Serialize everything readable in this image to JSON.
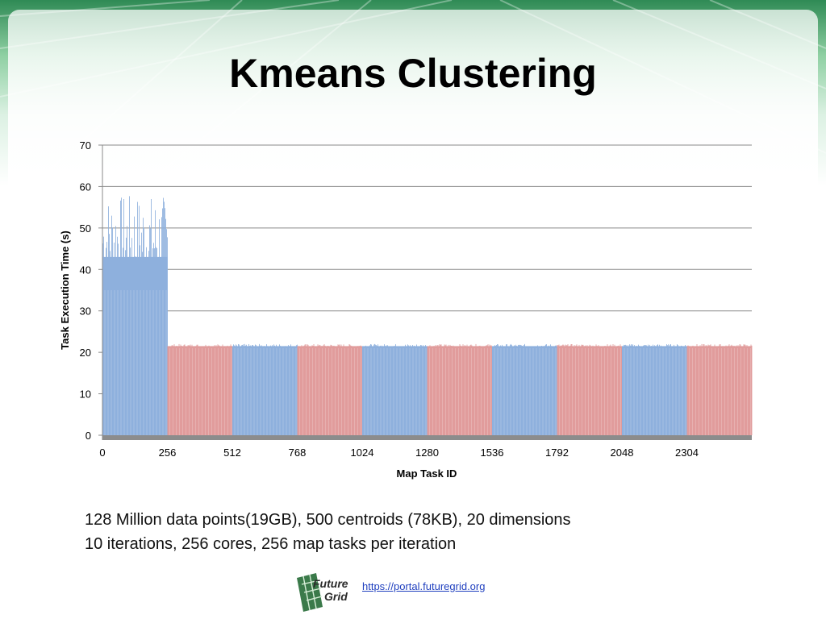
{
  "slide": {
    "title": "Kmeans Clustering",
    "caption_lines": [
      "128 Million data points(19GB), 500 centroids (78KB), 20 dimensions",
      "10 iterations, 256 cores, 256 map tasks per iteration"
    ],
    "logo_text": [
      "Future",
      "Grid"
    ],
    "link": "https://portal.futuregrid.org",
    "colors": {
      "background_top": "#2f8a55",
      "link": "#1f3fbf"
    }
  },
  "chart_data": {
    "type": "bar",
    "title": "",
    "xlabel": "Map Task ID",
    "ylabel": "Task Execution Time (s)",
    "xlim": [
      0,
      2560
    ],
    "ylim": [
      0,
      70
    ],
    "yticks": [
      0,
      10,
      20,
      30,
      40,
      50,
      60,
      70
    ],
    "xticks": [
      0,
      256,
      512,
      768,
      1024,
      1280,
      1536,
      1792,
      2048,
      2304
    ],
    "grid": true,
    "legend": "none",
    "colors": {
      "iteration_a": "#8eb0dd",
      "iteration_b": "#e09c9c"
    },
    "series": [
      {
        "iteration": 1,
        "task_range": [
          0,
          255
        ],
        "typical_time": 43,
        "min_time": 35,
        "max_time": 58,
        "color": "#8eb0dd"
      },
      {
        "iteration": 2,
        "task_range": [
          256,
          511
        ],
        "typical_time": 21.5,
        "min_time": 21,
        "max_time": 22,
        "color": "#e09c9c"
      },
      {
        "iteration": 3,
        "task_range": [
          512,
          767
        ],
        "typical_time": 21.5,
        "min_time": 21,
        "max_time": 22,
        "color": "#8eb0dd"
      },
      {
        "iteration": 4,
        "task_range": [
          768,
          1023
        ],
        "typical_time": 21.5,
        "min_time": 21,
        "max_time": 22,
        "color": "#e09c9c"
      },
      {
        "iteration": 5,
        "task_range": [
          1024,
          1279
        ],
        "typical_time": 21.5,
        "min_time": 21,
        "max_time": 22,
        "color": "#8eb0dd"
      },
      {
        "iteration": 6,
        "task_range": [
          1280,
          1535
        ],
        "typical_time": 21.5,
        "min_time": 21,
        "max_time": 22,
        "color": "#e09c9c"
      },
      {
        "iteration": 7,
        "task_range": [
          1536,
          1791
        ],
        "typical_time": 21.5,
        "min_time": 21,
        "max_time": 22,
        "color": "#8eb0dd"
      },
      {
        "iteration": 8,
        "task_range": [
          1792,
          2047
        ],
        "typical_time": 21.5,
        "min_time": 21,
        "max_time": 22,
        "color": "#e09c9c"
      },
      {
        "iteration": 9,
        "task_range": [
          2048,
          2303
        ],
        "typical_time": 21.5,
        "min_time": 21,
        "max_time": 22,
        "color": "#8eb0dd"
      },
      {
        "iteration": 10,
        "task_range": [
          2304,
          2559
        ],
        "typical_time": 21.5,
        "min_time": 21,
        "max_time": 22,
        "color": "#e09c9c"
      }
    ]
  }
}
